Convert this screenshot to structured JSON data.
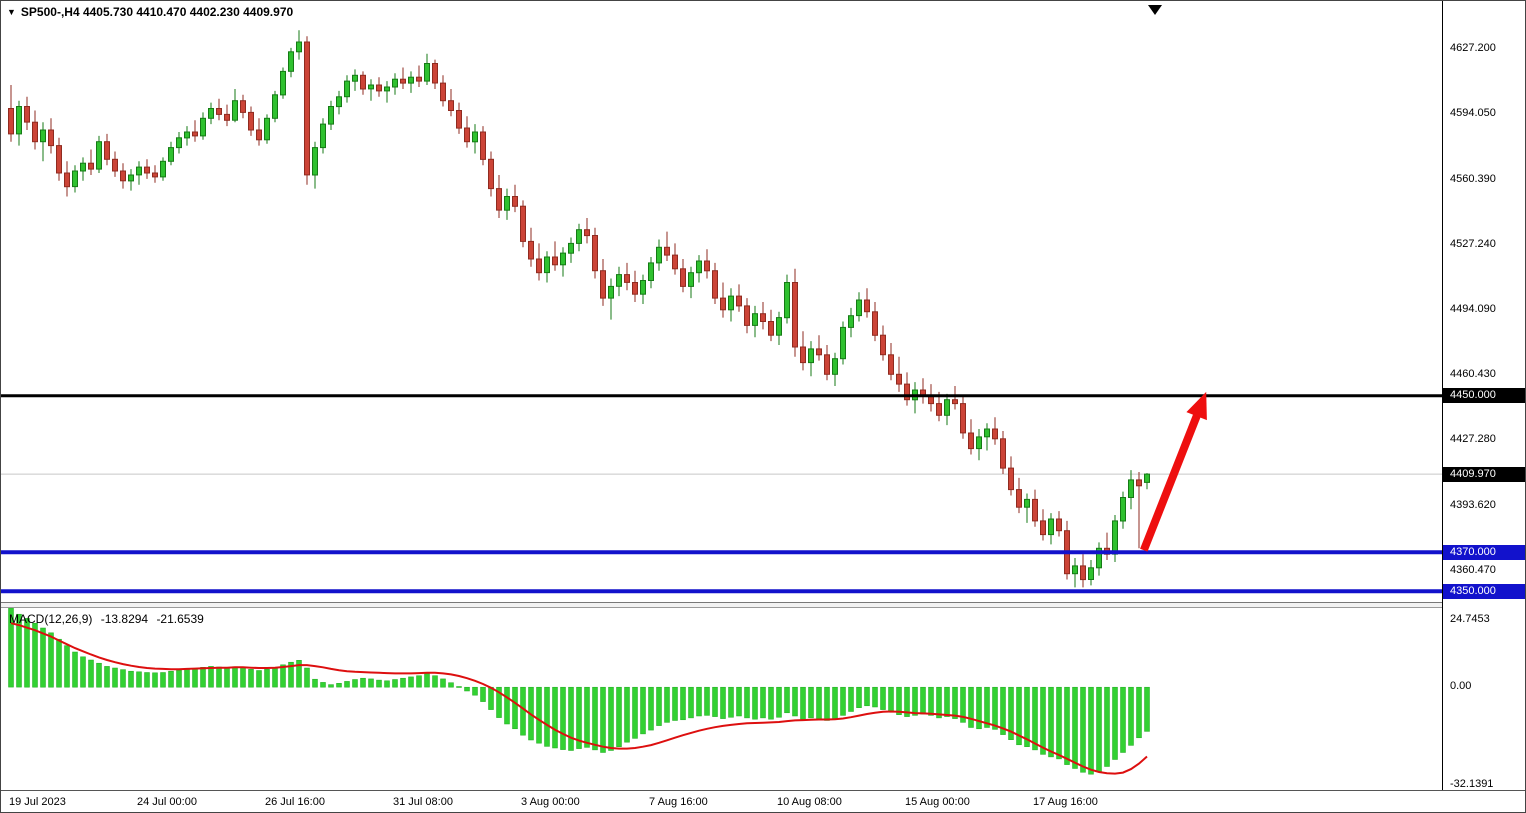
{
  "header": {
    "dropdown_icon": "▼",
    "symbol": "SP500-",
    "timeframe": "H4",
    "title": "SP500-,H4 4405.730 4410.470 4402.230 4409.970"
  },
  "colors": {
    "bull_fill": "#2fc12f",
    "bull_stroke": "#157a15",
    "bear_fill": "#cc4437",
    "bear_stroke": "#8f2b20",
    "hline_black": "#000000",
    "hline_blue": "#1212cc",
    "macd_hist_fill": "#32d132",
    "macd_hist_stroke": "#1faa1f",
    "macd_signal": "#dd0f0f",
    "arrow": "#ee0f0f",
    "current_price_line": "#c8c8c8"
  },
  "chart_data": {
    "type": "candlestick",
    "symbol": "SP500-",
    "timeframe": "H4",
    "last_ohlc": {
      "open": 4405.73,
      "high": 4410.47,
      "low": 4402.23,
      "close": 4409.97
    },
    "price_axis": {
      "ylim": [
        4344.0,
        4652.0
      ],
      "ticks": [
        "4627.200",
        "4594.050",
        "4560.390",
        "4527.240",
        "4494.090",
        "4460.430",
        "4427.280",
        "4393.620",
        "4360.470"
      ]
    },
    "time_axis": {
      "ticks": [
        {
          "index": 0,
          "label": "19 Jul 2023"
        },
        {
          "index": 16,
          "label": "24 Jul 00:00"
        },
        {
          "index": 32,
          "label": "26 Jul 16:00"
        },
        {
          "index": 48,
          "label": "31 Jul 08:00"
        },
        {
          "index": 64,
          "label": "3 Aug 00:00"
        },
        {
          "index": 80,
          "label": "7 Aug 16:00"
        },
        {
          "index": 96,
          "label": "10 Aug 08:00"
        },
        {
          "index": 112,
          "label": "15 Aug 00:00"
        },
        {
          "index": 128,
          "label": "17 Aug 16:00"
        }
      ]
    },
    "hlines": [
      {
        "price": 4450.0,
        "label": "4450.000",
        "color": "#000000",
        "width": 3,
        "tag_bg": "#000000"
      },
      {
        "price": 4370.0,
        "label": "4370.000",
        "color": "#1212cc",
        "width": 4,
        "tag_bg": "#1212cc"
      },
      {
        "price": 4350.0,
        "label": "4350.000",
        "color": "#1212cc",
        "width": 4,
        "tag_bg": "#1212cc"
      }
    ],
    "current_price": {
      "value": 4409.97,
      "label": "4409.970",
      "tag_bg": "#000000"
    },
    "trend_arrow": {
      "from_index": 141.6,
      "from_price": 4371.0,
      "to_index": 149.4,
      "to_price": 4452.0
    },
    "candles": [
      [
        4597,
        4609,
        4580,
        4584
      ],
      [
        4584,
        4601,
        4578,
        4598
      ],
      [
        4598,
        4603,
        4586,
        4590
      ],
      [
        4590,
        4596,
        4576,
        4580
      ],
      [
        4580,
        4590,
        4570,
        4586
      ],
      [
        4586,
        4592,
        4574,
        4578
      ],
      [
        4578,
        4582,
        4560,
        4564
      ],
      [
        4564,
        4570,
        4552,
        4557
      ],
      [
        4557,
        4568,
        4554,
        4565
      ],
      [
        4565,
        4572,
        4560,
        4569
      ],
      [
        4569,
        4576,
        4563,
        4566
      ],
      [
        4566,
        4583,
        4564,
        4580
      ],
      [
        4580,
        4584,
        4568,
        4571
      ],
      [
        4571,
        4575,
        4562,
        4565
      ],
      [
        4565,
        4569,
        4556,
        4560
      ],
      [
        4560,
        4566,
        4555,
        4563
      ],
      [
        4563,
        4570,
        4558,
        4567
      ],
      [
        4567,
        4571,
        4561,
        4564
      ],
      [
        4564,
        4568,
        4559,
        4562
      ],
      [
        4562,
        4572,
        4560,
        4570
      ],
      [
        4570,
        4580,
        4568,
        4577
      ],
      [
        4577,
        4585,
        4574,
        4582
      ],
      [
        4582,
        4588,
        4578,
        4585
      ],
      [
        4585,
        4591,
        4580,
        4583
      ],
      [
        4583,
        4595,
        4581,
        4592
      ],
      [
        4592,
        4600,
        4589,
        4597
      ],
      [
        4597,
        4602,
        4591,
        4594
      ],
      [
        4594,
        4599,
        4588,
        4591
      ],
      [
        4591,
        4607,
        4590,
        4601
      ],
      [
        4601,
        4604,
        4592,
        4595
      ],
      [
        4595,
        4598,
        4583,
        4586
      ],
      [
        4586,
        4592,
        4578,
        4581
      ],
      [
        4581,
        4594,
        4579,
        4592
      ],
      [
        4592,
        4606,
        4590,
        4604
      ],
      [
        4604,
        4618,
        4602,
        4616
      ],
      [
        4616,
        4628,
        4613,
        4626
      ],
      [
        4626,
        4637,
        4622,
        4631
      ],
      [
        4631,
        4634,
        4558,
        4563
      ],
      [
        4563,
        4580,
        4556,
        4577
      ],
      [
        4577,
        4592,
        4574,
        4589
      ],
      [
        4589,
        4601,
        4586,
        4598
      ],
      [
        4598,
        4606,
        4594,
        4603
      ],
      [
        4603,
        4614,
        4600,
        4611
      ],
      [
        4611,
        4617,
        4606,
        4614
      ],
      [
        4614,
        4616,
        4604,
        4607
      ],
      [
        4607,
        4612,
        4601,
        4609
      ],
      [
        4609,
        4613,
        4603,
        4606
      ],
      [
        4606,
        4611,
        4600,
        4608
      ],
      [
        4608,
        4615,
        4604,
        4612
      ],
      [
        4612,
        4618,
        4607,
        4610
      ],
      [
        4610,
        4616,
        4605,
        4613
      ],
      [
        4613,
        4619,
        4608,
        4611
      ],
      [
        4611,
        4625,
        4609,
        4620
      ],
      [
        4620,
        4622,
        4607,
        4610
      ],
      [
        4610,
        4614,
        4598,
        4601
      ],
      [
        4601,
        4607,
        4593,
        4596
      ],
      [
        4596,
        4600,
        4584,
        4587
      ],
      [
        4587,
        4593,
        4577,
        4580
      ],
      [
        4580,
        4589,
        4574,
        4585
      ],
      [
        4585,
        4588,
        4568,
        4571
      ],
      [
        4571,
        4575,
        4552,
        4556
      ],
      [
        4556,
        4563,
        4541,
        4545
      ],
      [
        4545,
        4556,
        4540,
        4552
      ],
      [
        4552,
        4558,
        4544,
        4547
      ],
      [
        4547,
        4550,
        4526,
        4529
      ],
      [
        4529,
        4536,
        4516,
        4520
      ],
      [
        4520,
        4528,
        4509,
        4513
      ],
      [
        4513,
        4524,
        4508,
        4521
      ],
      [
        4521,
        4529,
        4514,
        4517
      ],
      [
        4517,
        4526,
        4511,
        4523
      ],
      [
        4523,
        4531,
        4518,
        4528
      ],
      [
        4528,
        4538,
        4524,
        4535
      ],
      [
        4535,
        4541,
        4528,
        4532
      ],
      [
        4532,
        4536,
        4510,
        4514
      ],
      [
        4514,
        4520,
        4496,
        4500
      ],
      [
        4500,
        4510,
        4489,
        4506
      ],
      [
        4506,
        4516,
        4501,
        4512
      ],
      [
        4512,
        4518,
        4504,
        4508
      ],
      [
        4508,
        4514,
        4498,
        4502
      ],
      [
        4502,
        4512,
        4497,
        4509
      ],
      [
        4509,
        4521,
        4505,
        4518
      ],
      [
        4518,
        4530,
        4514,
        4526
      ],
      [
        4526,
        4534,
        4519,
        4522
      ],
      [
        4522,
        4528,
        4512,
        4515
      ],
      [
        4515,
        4520,
        4503,
        4506
      ],
      [
        4506,
        4516,
        4500,
        4513
      ],
      [
        4513,
        4522,
        4508,
        4519
      ],
      [
        4519,
        4525,
        4510,
        4514
      ],
      [
        4514,
        4518,
        4497,
        4500
      ],
      [
        4500,
        4508,
        4490,
        4494
      ],
      [
        4494,
        4505,
        4488,
        4501
      ],
      [
        4501,
        4507,
        4493,
        4496
      ],
      [
        4496,
        4500,
        4482,
        4486
      ],
      [
        4486,
        4496,
        4480,
        4492
      ],
      [
        4492,
        4498,
        4484,
        4488
      ],
      [
        4488,
        4494,
        4478,
        4481
      ],
      [
        4481,
        4493,
        4476,
        4490
      ],
      [
        4490,
        4512,
        4487,
        4508
      ],
      [
        4508,
        4515,
        4470,
        4475
      ],
      [
        4475,
        4483,
        4463,
        4467
      ],
      [
        4467,
        4478,
        4460,
        4474
      ],
      [
        4474,
        4481,
        4468,
        4471
      ],
      [
        4471,
        4476,
        4458,
        4461
      ],
      [
        4461,
        4472,
        4455,
        4469
      ],
      [
        4469,
        4488,
        4466,
        4485
      ],
      [
        4485,
        4495,
        4480,
        4491
      ],
      [
        4491,
        4503,
        4488,
        4499
      ],
      [
        4499,
        4505,
        4490,
        4493
      ],
      [
        4493,
        4498,
        4478,
        4481
      ],
      [
        4481,
        4486,
        4468,
        4471
      ],
      [
        4471,
        4477,
        4458,
        4461
      ],
      [
        4461,
        4470,
        4452,
        4456
      ],
      [
        4456,
        4462,
        4445,
        4448
      ],
      [
        4448,
        4457,
        4441,
        4453
      ],
      [
        4453,
        4459,
        4446,
        4450
      ],
      [
        4450,
        4456,
        4442,
        4446
      ],
      [
        4446,
        4452,
        4437,
        4440
      ],
      [
        4440,
        4451,
        4435,
        4448
      ],
      [
        4448,
        4455,
        4443,
        4446
      ],
      [
        4446,
        4450,
        4428,
        4431
      ],
      [
        4431,
        4438,
        4420,
        4423
      ],
      [
        4423,
        4433,
        4417,
        4429
      ],
      [
        4429,
        4436,
        4422,
        4433
      ],
      [
        4433,
        4439,
        4425,
        4428
      ],
      [
        4428,
        4432,
        4410,
        4413
      ],
      [
        4413,
        4419,
        4399,
        4402
      ],
      [
        4402,
        4408,
        4390,
        4393
      ],
      [
        4393,
        4400,
        4385,
        4397
      ],
      [
        4397,
        4402,
        4383,
        4386
      ],
      [
        4386,
        4392,
        4376,
        4379
      ],
      [
        4379,
        4390,
        4374,
        4387
      ],
      [
        4387,
        4391,
        4378,
        4381
      ],
      [
        4381,
        4386,
        4356,
        4359
      ],
      [
        4359,
        4367,
        4352,
        4363
      ],
      [
        4363,
        4369,
        4352,
        4356
      ],
      [
        4356,
        4366,
        4353,
        4362
      ],
      [
        4362,
        4375,
        4358,
        4372
      ],
      [
        4372,
        4380,
        4366,
        4369
      ],
      [
        4369,
        4389,
        4365,
        4386
      ],
      [
        4386,
        4401,
        4382,
        4398
      ],
      [
        4398,
        4412,
        4392,
        4407
      ],
      [
        4407,
        4411,
        4372,
        4404
      ],
      [
        4405.73,
        4410.47,
        4402.23,
        4409.97
      ]
    ],
    "macd": {
      "title": "MACD(12,26,9)",
      "value": "-13.8294",
      "signal_value": "-21.6539",
      "ylim": [
        -32.1391,
        24.7453
      ],
      "ticks": [
        "24.7453",
        "0.00",
        "-32.1391"
      ],
      "histogram": [
        24.7,
        22.8,
        21.5,
        20.0,
        18.5,
        17.0,
        15.0,
        13.0,
        11.0,
        9.5,
        8.5,
        7.5,
        6.5,
        6.0,
        5.5,
        5.0,
        4.8,
        4.6,
        4.5,
        4.6,
        5.0,
        5.3,
        5.6,
        5.8,
        6.2,
        6.5,
        6.3,
        6.0,
        6.4,
        6.1,
        5.6,
        5.2,
        5.6,
        6.2,
        7.0,
        7.8,
        8.4,
        6.0,
        2.5,
        1.5,
        0.8,
        1.2,
        1.8,
        2.4,
        2.8,
        2.6,
        2.2,
        2.0,
        2.4,
        2.8,
        3.2,
        3.6,
        4.2,
        3.6,
        2.6,
        1.4,
        0.2,
        -1.2,
        -2.5,
        -4.5,
        -7.0,
        -9.5,
        -11.5,
        -13.0,
        -15.0,
        -16.5,
        -17.5,
        -18.5,
        -19.0,
        -19.5,
        -19.8,
        -19.2,
        -18.8,
        -19.6,
        -20.4,
        -19.8,
        -18.6,
        -17.2,
        -16.0,
        -14.6,
        -13.4,
        -12.0,
        -11.0,
        -10.4,
        -10.2,
        -9.6,
        -9.0,
        -8.8,
        -9.2,
        -9.8,
        -9.4,
        -9.0,
        -9.6,
        -10.0,
        -9.6,
        -10.0,
        -9.4,
        -8.0,
        -9.0,
        -10.0,
        -9.6,
        -10.0,
        -10.4,
        -9.8,
        -8.8,
        -7.6,
        -6.4,
        -5.8,
        -6.2,
        -7.0,
        -7.8,
        -8.6,
        -9.2,
        -8.8,
        -8.4,
        -8.8,
        -9.6,
        -9.2,
        -9.8,
        -11.0,
        -12.6,
        -13.0,
        -12.6,
        -13.2,
        -14.8,
        -16.4,
        -18.0,
        -18.6,
        -19.6,
        -21.0,
        -21.8,
        -22.4,
        -24.2,
        -25.4,
        -26.6,
        -27.2,
        -26.4,
        -24.8,
        -22.6,
        -20.4,
        -18.2,
        -15.8,
        -13.8294
      ],
      "signal": [
        20.0,
        19.4,
        18.6,
        17.8,
        16.8,
        15.8,
        14.6,
        13.4,
        12.2,
        11.2,
        10.2,
        9.3,
        8.5,
        7.8,
        7.2,
        6.7,
        6.3,
        6.0,
        5.8,
        5.7,
        5.6,
        5.6,
        5.7,
        5.8,
        5.9,
        6.0,
        6.1,
        6.1,
        6.2,
        6.2,
        6.1,
        6.0,
        6.0,
        6.1,
        6.3,
        6.6,
        6.9,
        6.9,
        6.6,
        6.2,
        5.7,
        5.3,
        5.0,
        4.8,
        4.7,
        4.6,
        4.5,
        4.4,
        4.3,
        4.3,
        4.3,
        4.4,
        4.5,
        4.5,
        4.3,
        4.0,
        3.5,
        2.8,
        2.0,
        1.0,
        -0.2,
        -1.6,
        -3.2,
        -4.9,
        -6.7,
        -8.5,
        -10.2,
        -11.8,
        -13.3,
        -14.6,
        -15.8,
        -16.7,
        -17.4,
        -18.0,
        -18.6,
        -19.0,
        -19.2,
        -19.2,
        -19.0,
        -18.6,
        -18.1,
        -17.4,
        -16.6,
        -15.8,
        -15.0,
        -14.3,
        -13.6,
        -13.0,
        -12.5,
        -12.1,
        -11.8,
        -11.5,
        -11.3,
        -11.2,
        -11.1,
        -11.0,
        -10.9,
        -10.6,
        -10.4,
        -10.3,
        -10.2,
        -10.1,
        -10.1,
        -10.0,
        -9.8,
        -9.4,
        -8.9,
        -8.4,
        -8.0,
        -7.7,
        -7.6,
        -7.7,
        -7.9,
        -8.1,
        -8.2,
        -8.3,
        -8.5,
        -8.7,
        -8.9,
        -9.3,
        -9.9,
        -10.6,
        -11.3,
        -12.0,
        -12.9,
        -13.9,
        -15.1,
        -16.3,
        -17.6,
        -18.9,
        -20.1,
        -21.2,
        -22.4,
        -23.6,
        -24.8,
        -25.8,
        -26.5,
        -26.9,
        -27.0,
        -26.7,
        -25.6,
        -23.9,
        -21.6539
      ]
    }
  }
}
